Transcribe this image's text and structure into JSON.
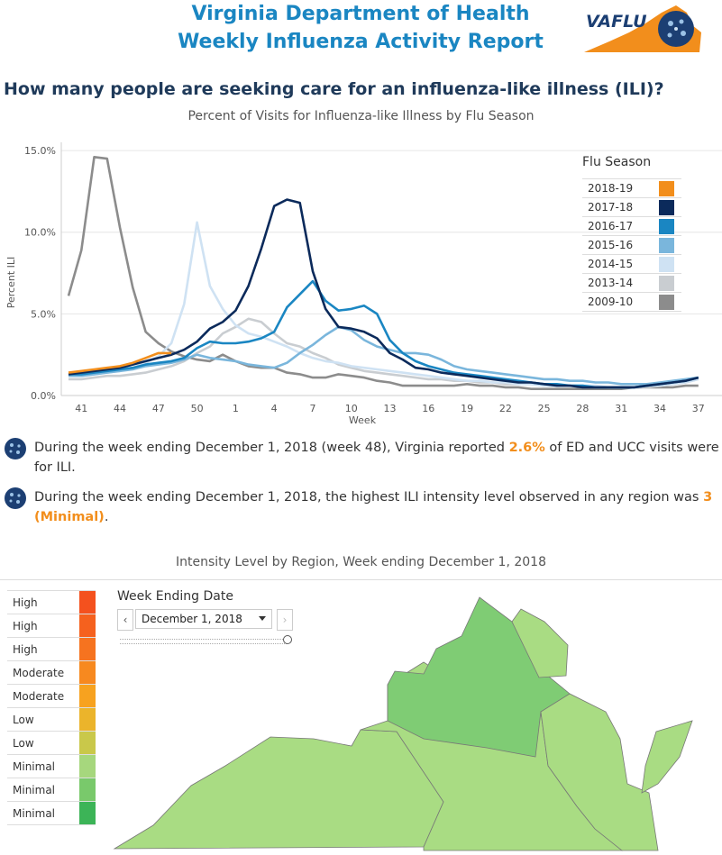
{
  "header": {
    "title_line1": "Virginia Department of Health",
    "title_line2": "Weekly Influenza Activity Report",
    "logo_text": "VAFLU"
  },
  "question": "How many people are seeking care for an influenza-like illness (ILI)?",
  "chart_data": {
    "type": "line",
    "title": "Percent of Visits for Influenza-like Illness by Flu Season",
    "xlabel": "Week",
    "ylabel": "Percent ILI",
    "x_ticks": [
      "41",
      "44",
      "47",
      "50",
      "1",
      "4",
      "7",
      "10",
      "13",
      "16",
      "19",
      "22",
      "25",
      "28",
      "31",
      "34",
      "37"
    ],
    "y_ticks": [
      "15.0%",
      "10.0%",
      "5.0%",
      "0.0%"
    ],
    "ylim": [
      0,
      15.5
    ],
    "x_start_week": 40,
    "legend_title": "Flu Season",
    "legend_position": "right",
    "series": [
      {
        "name": "2009-10",
        "color": "#8c8c8c",
        "values": [
          6.1,
          8.9,
          14.6,
          14.5,
          10.3,
          6.6,
          3.9,
          3.2,
          2.7,
          2.4,
          2.2,
          2.1,
          2.5,
          2.1,
          1.8,
          1.7,
          1.7,
          1.4,
          1.3,
          1.1,
          1.1,
          1.3,
          1.2,
          1.1,
          0.9,
          0.8,
          0.6,
          0.6,
          0.6,
          0.6,
          0.6,
          0.7,
          0.6,
          0.6,
          0.5,
          0.5,
          0.4,
          0.4,
          0.4,
          0.4,
          0.4,
          0.4,
          0.4,
          0.4,
          0.5,
          0.5,
          0.5,
          0.5,
          0.6,
          0.6
        ]
      },
      {
        "name": "2013-14",
        "color": "#c9cdd1",
        "values": [
          1.0,
          1.0,
          1.1,
          1.2,
          1.2,
          1.3,
          1.4,
          1.6,
          1.8,
          2.1,
          2.6,
          3.0,
          3.8,
          4.2,
          4.7,
          4.5,
          3.8,
          3.2,
          3.0,
          2.6,
          2.3,
          1.9,
          1.7,
          1.5,
          1.4,
          1.3,
          1.2,
          1.1,
          1.0,
          1.0,
          0.9,
          0.9,
          0.8,
          0.8,
          0.7,
          0.7,
          0.7,
          0.6,
          0.6,
          0.6,
          0.6,
          0.5,
          0.5,
          0.5,
          0.5,
          0.5,
          0.6,
          0.7,
          0.8,
          1.0
        ]
      },
      {
        "name": "2014-15",
        "color": "#cfe2f3",
        "values": [
          1.2,
          1.2,
          1.3,
          1.4,
          1.5,
          1.7,
          2.0,
          2.4,
          3.2,
          5.6,
          10.6,
          6.7,
          5.3,
          4.3,
          3.8,
          3.6,
          3.3,
          3.0,
          2.6,
          2.3,
          2.1,
          2.0,
          1.8,
          1.7,
          1.6,
          1.5,
          1.4,
          1.3,
          1.2,
          1.1,
          1.0,
          0.9,
          0.9,
          0.8,
          0.8,
          0.7,
          0.7,
          0.6,
          0.6,
          0.6,
          0.6,
          0.6,
          0.5,
          0.5,
          0.5,
          0.6,
          0.6,
          0.7,
          0.8,
          1.0
        ]
      },
      {
        "name": "2015-16",
        "color": "#7ab6dc",
        "values": [
          1.2,
          1.2,
          1.3,
          1.4,
          1.5,
          1.6,
          1.8,
          1.9,
          2.0,
          2.2,
          2.5,
          2.3,
          2.2,
          2.1,
          1.9,
          1.8,
          1.7,
          2.0,
          2.6,
          3.1,
          3.7,
          4.2,
          4.0,
          3.4,
          3.0,
          2.8,
          2.6,
          2.6,
          2.5,
          2.2,
          1.8,
          1.6,
          1.5,
          1.4,
          1.3,
          1.2,
          1.1,
          1.0,
          1.0,
          0.9,
          0.9,
          0.8,
          0.8,
          0.7,
          0.7,
          0.7,
          0.8,
          0.9,
          1.0,
          1.1
        ]
      },
      {
        "name": "2016-17",
        "color": "#1a86c2",
        "values": [
          1.3,
          1.3,
          1.4,
          1.5,
          1.6,
          1.7,
          1.9,
          2.0,
          2.1,
          2.3,
          2.9,
          3.3,
          3.2,
          3.2,
          3.3,
          3.5,
          3.9,
          5.4,
          6.2,
          7.0,
          5.8,
          5.2,
          5.3,
          5.5,
          5.0,
          3.4,
          2.6,
          2.1,
          1.8,
          1.6,
          1.4,
          1.3,
          1.2,
          1.1,
          1.0,
          0.9,
          0.8,
          0.7,
          0.7,
          0.6,
          0.6,
          0.5,
          0.5,
          0.5,
          0.5,
          0.6,
          0.7,
          0.8,
          0.9,
          1.1
        ]
      },
      {
        "name": "2017-18",
        "color": "#0b2a5b",
        "values": [
          1.3,
          1.4,
          1.5,
          1.6,
          1.7,
          1.9,
          2.1,
          2.3,
          2.5,
          2.8,
          3.3,
          4.1,
          4.5,
          5.2,
          6.7,
          9.0,
          11.6,
          12.0,
          11.8,
          7.6,
          5.3,
          4.2,
          4.1,
          3.9,
          3.5,
          2.6,
          2.2,
          1.7,
          1.6,
          1.4,
          1.3,
          1.2,
          1.1,
          1.0,
          0.9,
          0.8,
          0.8,
          0.7,
          0.6,
          0.6,
          0.5,
          0.5,
          0.5,
          0.5,
          0.5,
          0.6,
          0.7,
          0.8,
          0.9,
          1.1
        ]
      },
      {
        "name": "2018-19",
        "color": "#f28e1c",
        "values": [
          1.4,
          1.5,
          1.6,
          1.7,
          1.8,
          2.0,
          2.3,
          2.6,
          2.6
        ]
      }
    ]
  },
  "notes": {
    "note1_pre": "During the week ending December 1, 2018 (week 48), Virginia reported ",
    "note1_hl": "2.6%",
    "note1_post": " of ED and UCC visits were for ILI.",
    "note2_pre": "During the week ending December 1, 2018, the highest ILI intensity level observed in any region was ",
    "note2_hl": "3 (Minimal)",
    "note2_post": "."
  },
  "intensity_section": {
    "title": "Intensity Level by Region, Week ending December 1, 2018",
    "levels": [
      {
        "label": "High",
        "color": "#f4511e"
      },
      {
        "label": "High",
        "color": "#f5611e"
      },
      {
        "label": "High",
        "color": "#f6731f"
      },
      {
        "label": "Moderate",
        "color": "#f7891f"
      },
      {
        "label": "Moderate",
        "color": "#f7a21f"
      },
      {
        "label": "Low",
        "color": "#ebb42b"
      },
      {
        "label": "Low",
        "color": "#c9c84a"
      },
      {
        "label": "Minimal",
        "color": "#a6d77d"
      },
      {
        "label": "Minimal",
        "color": "#79c96b"
      },
      {
        "label": "Minimal",
        "color": "#3cb457"
      }
    ],
    "date_filter_label": "Week Ending Date",
    "date_selected": "December 1, 2018",
    "prev_glyph": "‹",
    "next_glyph": "›",
    "map_colors": {
      "northern": "#7fcc74",
      "other": "#a9dc83"
    }
  }
}
